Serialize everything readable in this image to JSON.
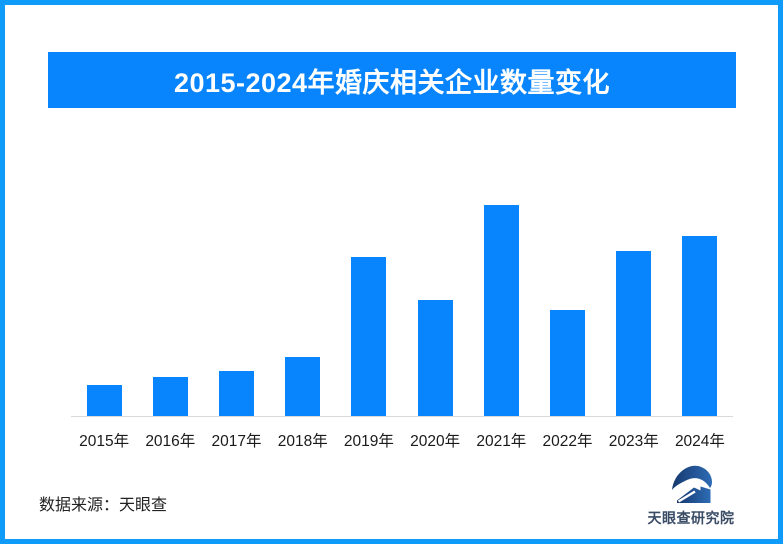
{
  "page": {
    "border_color": "#0f9bfa",
    "background_color": "#ffffff"
  },
  "header": {
    "title": "2015-2024年婚庆相关企业数量变化",
    "banner_color": "#0885fc",
    "title_color": "#ffffff"
  },
  "chart_data": {
    "type": "bar",
    "title": "2015-2024年婚庆相关企业数量变化",
    "categories": [
      "2015年",
      "2016年",
      "2017年",
      "2018年",
      "2019年",
      "2020年",
      "2021年",
      "2022年",
      "2023年",
      "2024年"
    ],
    "values": [
      14.7,
      18.5,
      21.4,
      28.0,
      75.5,
      54.9,
      100.0,
      50.2,
      78.3,
      85.1
    ],
    "values_note": "no numeric y-axis shown in image; values are relative bar heights with tallest bar (2021) = 100",
    "xlabel": "",
    "ylabel": "",
    "ylim": [
      0,
      100
    ],
    "grid": false,
    "legend": false,
    "bar_color": "#0885fc",
    "axis_line_color": "#d9d9d9",
    "tick_label_color": "#1a1a1a"
  },
  "footer": {
    "source_text": "数据来源：天眼查",
    "logo_text": "天眼查研究院",
    "logo_text_color": "#3b4c66"
  }
}
